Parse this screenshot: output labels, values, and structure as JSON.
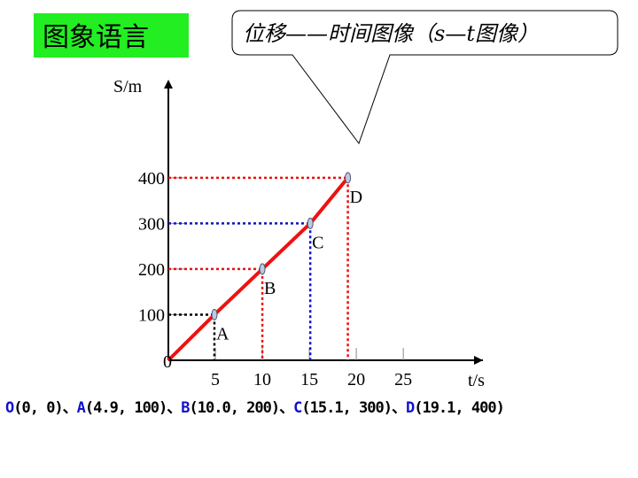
{
  "header": {
    "title": "图象语言",
    "callout": "位移——时间图像（s—t图像）"
  },
  "chart_data": {
    "type": "line",
    "x": [
      0,
      4.9,
      10,
      15.1,
      19.1
    ],
    "values": [
      0,
      100,
      200,
      300,
      400
    ],
    "point_labels": [
      "0",
      "A",
      "B",
      "C",
      "D"
    ],
    "color": "#ee1111",
    "guide_colors": [
      "#000000",
      "#000000",
      "#ee1111",
      "#1111cc",
      "#ee1111"
    ],
    "xlabel": "t/s",
    "ylabel": "S/m",
    "xlim": [
      0,
      33
    ],
    "ylim": [
      0,
      615
    ],
    "xticks": [
      5,
      10,
      15,
      20,
      25
    ],
    "yticks": [
      100,
      200,
      300,
      400
    ]
  },
  "footer": {
    "separator": "、",
    "items": [
      {
        "label": "O",
        "coords": "(0, 0)"
      },
      {
        "label": "A",
        "coords": "(4.9, 100)"
      },
      {
        "label": "B",
        "coords": "(10.0, 200)"
      },
      {
        "label": "C",
        "coords": "(15.1, 300)"
      },
      {
        "label": "D",
        "coords": "(19.1, 400)"
      }
    ]
  }
}
